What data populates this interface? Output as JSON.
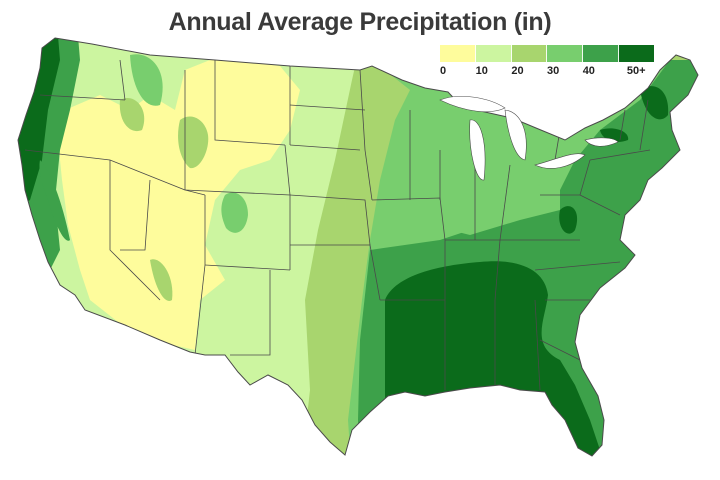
{
  "title": "Annual Average Precipitation (in)",
  "legend": {
    "bins": [
      {
        "label": "0",
        "color": "#fefc9c"
      },
      {
        "label": "10",
        "color": "#ccf5a0"
      },
      {
        "label": "20",
        "color": "#a8d56e"
      },
      {
        "label": "30",
        "color": "#78ce6e"
      },
      {
        "label": "40",
        "color": "#3da14a"
      },
      {
        "label": "50+",
        "color": "#0b6b1b"
      }
    ]
  },
  "colors": {
    "state_border": "#4a4a4a",
    "background": "#ffffff"
  }
}
